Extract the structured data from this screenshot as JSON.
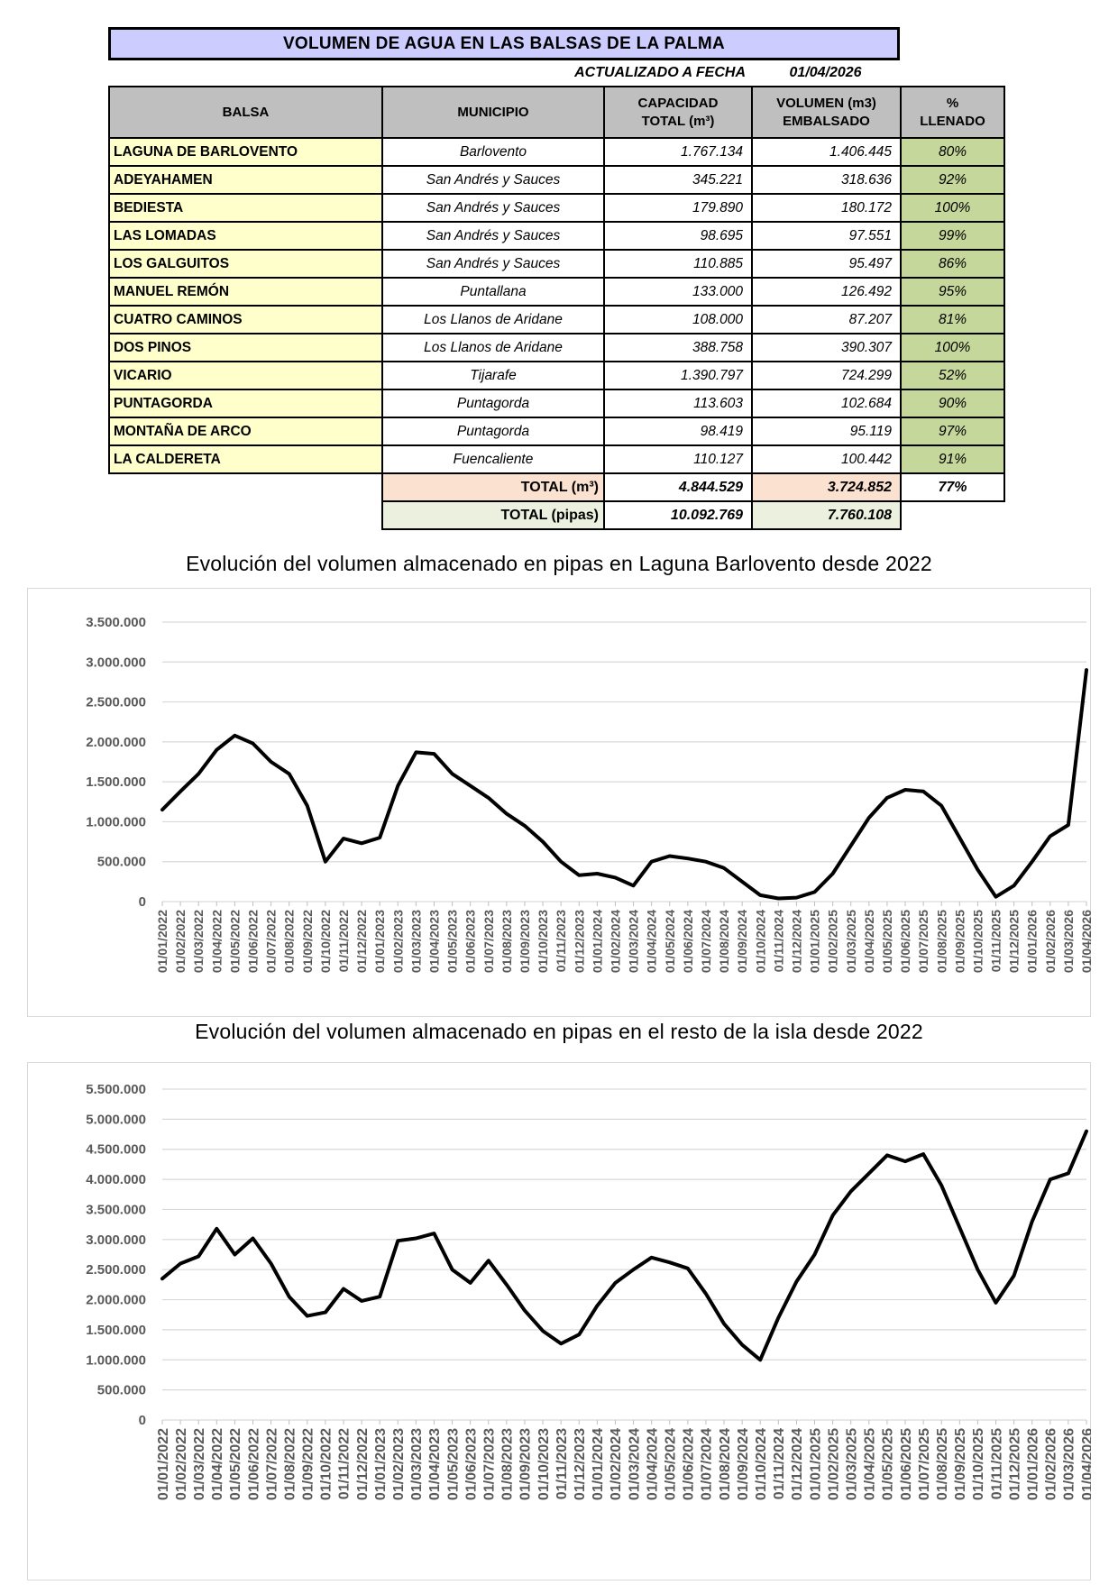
{
  "table": {
    "title": "VOLUMEN DE AGUA EN LAS BALSAS DE LA PALMA",
    "updated_label": "ACTUALIZADO A FECHA",
    "updated_date": "01/04/2026",
    "headers": {
      "balsa": "BALSA",
      "municipio": "MUNICIPIO",
      "capacidad_line1": "CAPACIDAD",
      "capacidad_line2": "TOTAL  (m³)",
      "volumen_line1": "VOLUMEN (m3)",
      "volumen_line2": "EMBALSADO",
      "llenado_line1": "%",
      "llenado_line2": "LLENADO"
    },
    "rows": [
      {
        "balsa": "LAGUNA DE BARLOVENTO",
        "municipio": "Barlovento",
        "capacidad": "1.767.134",
        "volumen": "1.406.445",
        "llenado": "80%"
      },
      {
        "balsa": "ADEYAHAMEN",
        "municipio": "San Andrés y Sauces",
        "capacidad": "345.221",
        "volumen": "318.636",
        "llenado": "92%"
      },
      {
        "balsa": "BEDIESTA",
        "municipio": "San Andrés y Sauces",
        "capacidad": "179.890",
        "volumen": "180.172",
        "llenado": "100%"
      },
      {
        "balsa": "LAS LOMADAS",
        "municipio": "San Andrés y Sauces",
        "capacidad": "98.695",
        "volumen": "97.551",
        "llenado": "99%"
      },
      {
        "balsa": "LOS GALGUITOS",
        "municipio": "San Andrés y Sauces",
        "capacidad": "110.885",
        "volumen": "95.497",
        "llenado": "86%"
      },
      {
        "balsa": "MANUEL REMÓN",
        "municipio": "Puntallana",
        "capacidad": "133.000",
        "volumen": "126.492",
        "llenado": "95%"
      },
      {
        "balsa": "CUATRO CAMINOS",
        "municipio": "Los Llanos de Aridane",
        "capacidad": "108.000",
        "volumen": "87.207",
        "llenado": "81%"
      },
      {
        "balsa": "DOS PINOS",
        "municipio": "Los Llanos de Aridane",
        "capacidad": "388.758",
        "volumen": "390.307",
        "llenado": "100%"
      },
      {
        "balsa": "VICARIO",
        "municipio": "Tijarafe",
        "capacidad": "1.390.797",
        "volumen": "724.299",
        "llenado": "52%"
      },
      {
        "balsa": "PUNTAGORDA",
        "municipio": "Puntagorda",
        "capacidad": "113.603",
        "volumen": "102.684",
        "llenado": "90%"
      },
      {
        "balsa": "MONTAÑA DE ARCO",
        "municipio": "Puntagorda",
        "capacidad": "98.419",
        "volumen": "95.119",
        "llenado": "97%"
      },
      {
        "balsa": "LA CALDERETA",
        "municipio": "Fuencaliente",
        "capacidad": "110.127",
        "volumen": "100.442",
        "llenado": "91%"
      }
    ],
    "total_m3": {
      "label": "TOTAL (m³)",
      "capacidad": "4.844.529",
      "volumen": "3.724.852",
      "llenado": "77%"
    },
    "total_pipas": {
      "label": "TOTAL (pipas)",
      "capacidad": "10.092.769",
      "volumen": "7.760.108"
    }
  },
  "colors": {
    "title_bar": "#ccccff",
    "header": "#bfbfbf",
    "balsa": "#ffffcc",
    "pct_green": "#c5d79b",
    "total_pink": "#fbe2d0",
    "total_green": "#ebf1de",
    "grid_line": "#d9d9d9",
    "axis_text": "#595959",
    "series_line": "#000000"
  },
  "months": [
    "01/01/2022",
    "01/02/2022",
    "01/03/2022",
    "01/04/2022",
    "01/05/2022",
    "01/06/2022",
    "01/07/2022",
    "01/08/2022",
    "01/09/2022",
    "01/10/2022",
    "01/11/2022",
    "01/12/2022",
    "01/01/2023",
    "01/02/2023",
    "01/03/2023",
    "01/04/2023",
    "01/05/2023",
    "01/06/2023",
    "01/07/2023",
    "01/08/2023",
    "01/09/2023",
    "01/10/2023",
    "01/11/2023",
    "01/12/2023",
    "01/01/2024",
    "01/02/2024",
    "01/03/2024",
    "01/04/2024",
    "01/05/2024",
    "01/06/2024",
    "01/07/2024",
    "01/08/2024",
    "01/09/2024",
    "01/10/2024",
    "01/11/2024",
    "01/12/2024",
    "01/01/2025",
    "01/02/2025",
    "01/03/2025",
    "01/04/2025",
    "01/05/2025",
    "01/06/2025",
    "01/07/2025",
    "01/08/2025",
    "01/09/2025",
    "01/10/2025",
    "01/11/2025",
    "01/12/2025",
    "01/01/2026",
    "01/02/2026",
    "01/03/2026",
    "01/04/2026"
  ],
  "chart_data": [
    {
      "type": "line",
      "title": "Evolución del volumen almacenado en pipas en Laguna Barlovento desde 2022",
      "xlabel": "",
      "ylabel": "",
      "ylim": [
        0,
        3500000
      ],
      "grid": true,
      "legend": "none",
      "y_ticks": [
        "0",
        "500.000",
        "1.000.000",
        "1.500.000",
        "2.000.000",
        "2.500.000",
        "3.000.000",
        "3.500.000"
      ],
      "series": [
        {
          "name": "Laguna de Barlovento (pipas)",
          "values": [
            1150000,
            1380000,
            1600000,
            1900000,
            2080000,
            1980000,
            1750000,
            1600000,
            1200000,
            500000,
            790000,
            730000,
            800000,
            1450000,
            1870000,
            1850000,
            1600000,
            1450000,
            1300000,
            1100000,
            950000,
            750000,
            500000,
            330000,
            350000,
            300000,
            200000,
            500000,
            570000,
            540000,
            500000,
            420000,
            250000,
            80000,
            40000,
            50000,
            120000,
            350000,
            700000,
            1050000,
            1300000,
            1400000,
            1380000,
            1200000,
            800000,
            400000,
            60000,
            200000,
            500000,
            820000,
            960000,
            2900000
          ]
        }
      ]
    },
    {
      "type": "line",
      "title": "Evolución del volumen almacenado en pipas en el resto de la isla desde 2022",
      "xlabel": "",
      "ylabel": "",
      "ylim": [
        0,
        5500000
      ],
      "grid": true,
      "legend": "none",
      "y_ticks": [
        "0",
        "500.000",
        "1.000.000",
        "1.500.000",
        "2.000.000",
        "2.500.000",
        "3.000.000",
        "3.500.000",
        "4.000.000",
        "4.500.000",
        "5.000.000",
        "5.500.000"
      ],
      "series": [
        {
          "name": "Resto de la isla (pipas)",
          "values": [
            2350000,
            2600000,
            2720000,
            3180000,
            2750000,
            3020000,
            2600000,
            2050000,
            1730000,
            1790000,
            2180000,
            1980000,
            2050000,
            2980000,
            3020000,
            3100000,
            2500000,
            2280000,
            2650000,
            2250000,
            1820000,
            1480000,
            1270000,
            1420000,
            1900000,
            2280000,
            2500000,
            2700000,
            2620000,
            2520000,
            2100000,
            1600000,
            1250000,
            1000000,
            1700000,
            2300000,
            2750000,
            3400000,
            3800000,
            4100000,
            4400000,
            4300000,
            4420000,
            3900000,
            3200000,
            2500000,
            1950000,
            2400000,
            3300000,
            4000000,
            4100000,
            4800000
          ]
        }
      ]
    }
  ]
}
